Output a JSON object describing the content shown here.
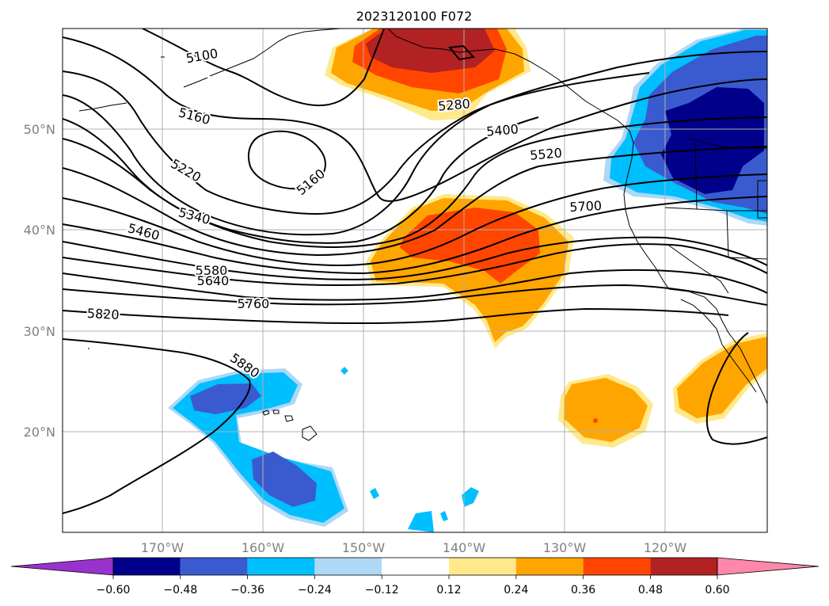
{
  "title": "2023120100 F072",
  "map": {
    "lat_labels": [
      "50°N",
      "40°N",
      "30°N",
      "20°N"
    ],
    "lon_labels": [
      "170°W",
      "160°W",
      "150°W",
      "140°W",
      "130°W",
      "120°W"
    ],
    "contour_labels": [
      "5100",
      "5160",
      "5220",
      "5280",
      "5340",
      "5400",
      "5460",
      "5520",
      "5580",
      "5640",
      "5700",
      "5760",
      "5820",
      "5880",
      "5160"
    ]
  },
  "colorbar": {
    "tick_labels": [
      "−0.60",
      "−0.48",
      "−0.36",
      "−0.24",
      "−0.12",
      "0.12",
      "0.24",
      "0.36",
      "0.48",
      "0.60"
    ],
    "colors": [
      "#9932CC",
      "#00008B",
      "#3A5BCF",
      "#00BFFF",
      "#ADD8F6",
      "#FFFFFF",
      "#FFE98A",
      "#FFA500",
      "#FF4500",
      "#B22222",
      "#FF88AA"
    ]
  }
}
